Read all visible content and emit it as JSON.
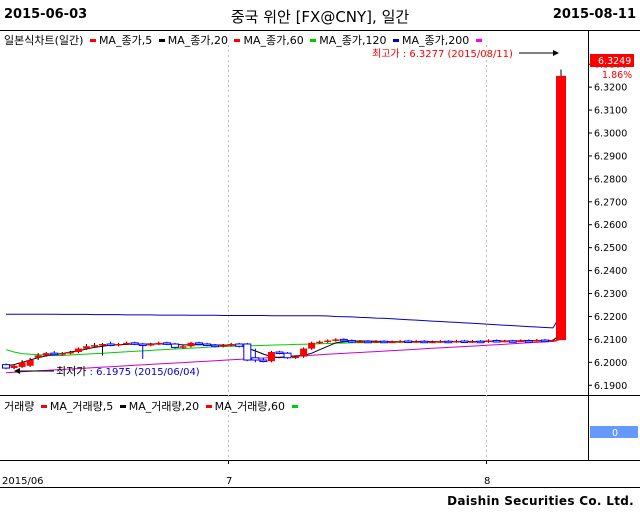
{
  "header": {
    "start_date": "2015-06-03",
    "title": "중국 위안 [FX@CNY], 일간",
    "end_date": "2015-08-11"
  },
  "price_legend": {
    "label": "일본식차트(일간)",
    "items": [
      {
        "label": "MA_종가,5",
        "color": "#ff0000"
      },
      {
        "label": "MA_종가,20",
        "color": "#000000"
      },
      {
        "label": "MA_종가,60",
        "color": "#ff0000"
      },
      {
        "label": "MA_종가,120",
        "color": "#00cc00"
      },
      {
        "label": "MA_종가,200",
        "color": "#0000cc"
      }
    ],
    "end_marker_color": "#ff00ff"
  },
  "volume_legend": {
    "label": "거래량",
    "items": [
      {
        "label": "MA_거래량,5",
        "color": "#ff0000"
      },
      {
        "label": "MA_거래량,20",
        "color": "#000000"
      },
      {
        "label": "MA_거래량,60",
        "color": "#00cc00"
      }
    ]
  },
  "annotations": {
    "high_label": "최고가 : 6.3277 (2015/08/11)",
    "low_label_prefix": "최저가",
    "low_label_value": " : 6.1975 (2015/06/04)",
    "last_price": "6.3249",
    "change_pct": "1.86%",
    "volume_value": "0"
  },
  "footer": "Daishin Securities Co. Ltd.",
  "colors": {
    "up": "#ff0000",
    "down": "#0000ff",
    "ma120": "#00cc00",
    "ma200": "#0000cc",
    "ma_purple": "#cc00cc",
    "price_tag": "#ff0000",
    "volume_tag": "#6699ff"
  },
  "chart_data": {
    "type": "candlestick",
    "y_ticks": [
      "6.3300",
      "6.3200",
      "6.3100",
      "6.3000",
      "6.2900",
      "6.2800",
      "6.2700",
      "6.2600",
      "6.2500",
      "6.2400",
      "6.2300",
      "6.2200",
      "6.2100",
      "6.2000",
      "6.1900"
    ],
    "ylim": [
      6.1875,
      6.3375
    ],
    "x_tick_labels": [
      "2015/06",
      "7",
      "8"
    ],
    "candles": [
      {
        "o": 6.199,
        "c": 6.1975,
        "h": 6.1995,
        "l": 6.197
      },
      {
        "o": 6.1975,
        "c": 6.1985,
        "h": 6.199,
        "l": 6.197
      },
      {
        "o": 6.198,
        "c": 6.2,
        "h": 6.201,
        "l": 6.1975
      },
      {
        "o": 6.1985,
        "c": 6.201,
        "h": 6.202,
        "l": 6.198
      },
      {
        "o": 6.202,
        "c": 6.203,
        "h": 6.204,
        "l": 6.201
      },
      {
        "o": 6.203,
        "c": 6.204,
        "h": 6.2045,
        "l": 6.2025
      },
      {
        "o": 6.204,
        "c": 6.2035,
        "h": 6.205,
        "l": 6.203
      },
      {
        "o": 6.2035,
        "c": 6.204,
        "h": 6.2045,
        "l": 6.203
      },
      {
        "o": 6.204,
        "c": 6.2045,
        "h": 6.205,
        "l": 6.2035
      },
      {
        "o": 6.2045,
        "c": 6.206,
        "h": 6.2065,
        "l": 6.204
      },
      {
        "o": 6.206,
        "c": 6.207,
        "h": 6.208,
        "l": 6.2055
      },
      {
        "o": 6.207,
        "c": 6.2075,
        "h": 6.2085,
        "l": 6.2065
      },
      {
        "o": 6.2075,
        "c": 6.208,
        "h": 6.2085,
        "l": 6.203
      },
      {
        "o": 6.208,
        "c": 6.2075,
        "h": 6.209,
        "l": 6.207
      },
      {
        "o": 6.2075,
        "c": 6.208,
        "h": 6.2085,
        "l": 6.207
      },
      {
        "o": 6.208,
        "c": 6.2085,
        "h": 6.209,
        "l": 6.2075
      },
      {
        "o": 6.2085,
        "c": 6.208,
        "h": 6.209,
        "l": 6.2075
      },
      {
        "o": 6.208,
        "c": 6.2075,
        "h": 6.2085,
        "l": 6.2015
      },
      {
        "o": 6.2075,
        "c": 6.208,
        "h": 6.2085,
        "l": 6.207
      },
      {
        "o": 6.208,
        "c": 6.2085,
        "h": 6.209,
        "l": 6.2075
      },
      {
        "o": 6.2085,
        "c": 6.208,
        "h": 6.209,
        "l": 6.2075
      },
      {
        "o": 6.208,
        "c": 6.2065,
        "h": 6.2085,
        "l": 6.206
      },
      {
        "o": 6.2065,
        "c": 6.207,
        "h": 6.2075,
        "l": 6.206
      },
      {
        "o": 6.207,
        "c": 6.2085,
        "h": 6.209,
        "l": 6.2065
      },
      {
        "o": 6.2085,
        "c": 6.208,
        "h": 6.209,
        "l": 6.2075
      },
      {
        "o": 6.208,
        "c": 6.2075,
        "h": 6.2085,
        "l": 6.207
      },
      {
        "o": 6.2075,
        "c": 6.207,
        "h": 6.208,
        "l": 6.2065
      },
      {
        "o": 6.207,
        "c": 6.2075,
        "h": 6.208,
        "l": 6.2065
      },
      {
        "o": 6.2075,
        "c": 6.208,
        "h": 6.2085,
        "l": 6.207
      },
      {
        "o": 6.208,
        "c": 6.207,
        "h": 6.2085,
        "l": 6.2065
      },
      {
        "o": 6.208,
        "c": 6.201,
        "h": 6.2085,
        "l": 6.2005
      },
      {
        "o": 6.202,
        "c": 6.201,
        "h": 6.206,
        "l": 6.2
      },
      {
        "o": 6.201,
        "c": 6.2005,
        "h": 6.202,
        "l": 6.2
      },
      {
        "o": 6.2005,
        "c": 6.2045,
        "h": 6.205,
        "l": 6.2
      },
      {
        "o": 6.2045,
        "c": 6.204,
        "h": 6.205,
        "l": 6.2035
      },
      {
        "o": 6.204,
        "c": 6.202,
        "h": 6.2045,
        "l": 6.2015
      },
      {
        "o": 6.202,
        "c": 6.2025,
        "h": 6.203,
        "l": 6.2015
      },
      {
        "o": 6.2025,
        "c": 6.206,
        "h": 6.2065,
        "l": 6.202
      },
      {
        "o": 6.206,
        "c": 6.2085,
        "h": 6.209,
        "l": 6.2055
      },
      {
        "o": 6.2085,
        "c": 6.209,
        "h": 6.2095,
        "l": 6.208
      },
      {
        "o": 6.209,
        "c": 6.2095,
        "h": 6.21,
        "l": 6.2085
      },
      {
        "o": 6.2095,
        "c": 6.21,
        "h": 6.2105,
        "l": 6.209
      },
      {
        "o": 6.21,
        "c": 6.2095,
        "h": 6.2105,
        "l": 6.209
      },
      {
        "o": 6.2095,
        "c": 6.209,
        "h": 6.21,
        "l": 6.2085
      },
      {
        "o": 6.209,
        "c": 6.2092,
        "h": 6.2097,
        "l": 6.2085
      },
      {
        "o": 6.2092,
        "c": 6.209,
        "h": 6.2097,
        "l": 6.2085
      },
      {
        "o": 6.209,
        "c": 6.2092,
        "h": 6.2097,
        "l": 6.2085
      },
      {
        "o": 6.2092,
        "c": 6.2088,
        "h": 6.2097,
        "l": 6.2085
      },
      {
        "o": 6.2088,
        "c": 6.209,
        "h": 6.2095,
        "l": 6.2085
      },
      {
        "o": 6.209,
        "c": 6.2093,
        "h": 6.2098,
        "l": 6.2085
      },
      {
        "o": 6.2093,
        "c": 6.209,
        "h": 6.2098,
        "l": 6.2085
      },
      {
        "o": 6.209,
        "c": 6.2092,
        "h": 6.2097,
        "l": 6.2085
      },
      {
        "o": 6.2092,
        "c": 6.2088,
        "h": 6.2097,
        "l": 6.2085
      },
      {
        "o": 6.2088,
        "c": 6.209,
        "h": 6.2095,
        "l": 6.2085
      },
      {
        "o": 6.209,
        "c": 6.2092,
        "h": 6.2097,
        "l": 6.2085
      },
      {
        "o": 6.2092,
        "c": 6.209,
        "h": 6.2097,
        "l": 6.2085
      },
      {
        "o": 6.209,
        "c": 6.2093,
        "h": 6.2098,
        "l": 6.2085
      },
      {
        "o": 6.2093,
        "c": 6.209,
        "h": 6.2098,
        "l": 6.2085
      },
      {
        "o": 6.209,
        "c": 6.2092,
        "h": 6.2097,
        "l": 6.2085
      },
      {
        "o": 6.2092,
        "c": 6.209,
        "h": 6.2097,
        "l": 6.2085
      },
      {
        "o": 6.209,
        "c": 6.2095,
        "h": 6.21,
        "l": 6.2085
      },
      {
        "o": 6.2095,
        "c": 6.2092,
        "h": 6.21,
        "l": 6.2088
      },
      {
        "o": 6.2092,
        "c": 6.2094,
        "h": 6.2098,
        "l": 6.2088
      },
      {
        "o": 6.2094,
        "c": 6.2093,
        "h": 6.2098,
        "l": 6.2088
      },
      {
        "o": 6.2093,
        "c": 6.2095,
        "h": 6.21,
        "l": 6.2088
      },
      {
        "o": 6.2095,
        "c": 6.2093,
        "h": 6.21,
        "l": 6.2088
      },
      {
        "o": 6.2093,
        "c": 6.2097,
        "h": 6.2102,
        "l": 6.209
      },
      {
        "o": 6.2097,
        "c": 6.2095,
        "h": 6.2102,
        "l": 6.209
      },
      {
        "o": 6.2095,
        "c": 6.2097,
        "h": 6.21,
        "l": 6.209
      },
      {
        "o": 6.2097,
        "c": 6.3249,
        "h": 6.3277,
        "l": 6.2097
      }
    ],
    "ma120": [
      6.2055,
      6.2045,
      6.2038,
      6.2035,
      6.2033,
      6.2031,
      6.203,
      6.203,
      6.2032,
      6.2034,
      6.2036,
      6.2038,
      6.204,
      6.2042,
      6.2044,
      6.2046,
      6.2048,
      6.205,
      6.2052,
      6.2054,
      6.2056,
      6.2058,
      6.206,
      6.2062,
      6.2064,
      6.2066,
      6.2068,
      6.2069,
      6.207,
      6.2071,
      6.2072,
      6.2073,
      6.2074,
      6.2075,
      6.2076,
      6.2077,
      6.2078,
      6.2079,
      6.208,
      6.2081,
      6.2082,
      6.2083,
      6.2084,
      6.2085,
      6.2085,
      6.2086,
      6.2086,
      6.2087,
      6.2087,
      6.2088,
      6.2088,
      6.2089,
      6.2089,
      6.209,
      6.209,
      6.209,
      6.2091,
      6.2091,
      6.2091,
      6.2092,
      6.2092,
      6.2092,
      6.2093,
      6.2093,
      6.2093,
      6.2094,
      6.2094,
      6.2094,
      6.2095,
      6.212
    ],
    "ma200": [
      6.221,
      6.221,
      6.221,
      6.221,
      6.221,
      6.221,
      6.221,
      6.2209,
      6.2209,
      6.2209,
      6.2209,
      6.2208,
      6.2208,
      6.2208,
      6.2208,
      6.2207,
      6.2207,
      6.2207,
      6.2207,
      6.2206,
      6.2206,
      6.2206,
      6.2206,
      6.2205,
      6.2205,
      6.2205,
      6.2205,
      6.2204,
      6.2204,
      6.2204,
      6.2204,
      6.2204,
      6.2204,
      6.2203,
      6.2203,
      6.2203,
      6.2203,
      6.2203,
      6.2203,
      6.2203,
      6.2202,
      6.22,
      6.2199,
      6.2198,
      6.2196,
      6.2195,
      6.2193,
      6.2192,
      6.219,
      6.2188,
      6.2186,
      6.2184,
      6.2182,
      6.218,
      6.2178,
      6.2176,
      6.2174,
      6.2172,
      6.217,
      6.2168,
      6.2166,
      6.2164,
      6.2162,
      6.216,
      6.2158,
      6.2156,
      6.2154,
      6.2152,
      6.215,
      6.221
    ],
    "ma_purple": [
      6.1955,
      6.1957,
      6.1959,
      6.1961,
      6.1963,
      6.1965,
      6.1967,
      6.1969,
      6.1971,
      6.1973,
      6.1975,
      6.1977,
      6.1979,
      6.1981,
      6.1983,
      6.1985,
      6.1987,
      6.1989,
      6.1991,
      6.1993,
      6.1995,
      6.1997,
      6.1999,
      6.2001,
      6.2003,
      6.2005,
      6.2007,
      6.2009,
      6.2011,
      6.2013,
      6.2015,
      6.2017,
      6.2019,
      6.2021,
      6.2023,
      6.2025,
      6.2027,
      6.2029,
      6.2031,
      6.2033,
      6.2035,
      6.2037,
      6.2039,
      6.2041,
      6.2043,
      6.2045,
      6.2047,
      6.2049,
      6.2051,
      6.2053,
      6.2055,
      6.2057,
      6.2059,
      6.2061,
      6.2063,
      6.2065,
      6.2067,
      6.2069,
      6.2071,
      6.2073,
      6.2075,
      6.2077,
      6.2079,
      6.2081,
      6.2083,
      6.2085,
      6.2087,
      6.2089,
      6.2091,
      6.21
    ],
    "ma_short": [
      6.1985,
      6.199,
      6.2,
      6.201,
      6.202,
      6.2028,
      6.2034,
      6.2038,
      6.2045,
      6.205,
      6.2058,
      6.2065,
      6.207,
      6.2075,
      6.2077,
      6.2078,
      6.208,
      6.208,
      6.208,
      6.208,
      6.208,
      6.2078,
      6.2076,
      6.2076,
      6.2077,
      6.2077,
      6.2076,
      6.2075,
      6.2075,
      6.2075,
      6.2062,
      6.205,
      6.2036,
      6.2025,
      6.202,
      6.2025,
      6.2028,
      6.203,
      6.204,
      6.2055,
      6.207,
      6.2085,
      6.209,
      6.2092,
      6.2093,
      6.2093,
      6.2092,
      6.2091,
      6.209,
      6.209,
      6.2091,
      6.2091,
      6.2091,
      6.209,
      6.209,
      6.2091,
      6.2091,
      6.2091,
      6.2091,
      6.2091,
      6.2092,
      6.2093,
      6.2093,
      6.2093,
      6.2094,
      6.2094,
      6.2095,
      6.2095,
      6.2096,
      6.2125
    ]
  }
}
